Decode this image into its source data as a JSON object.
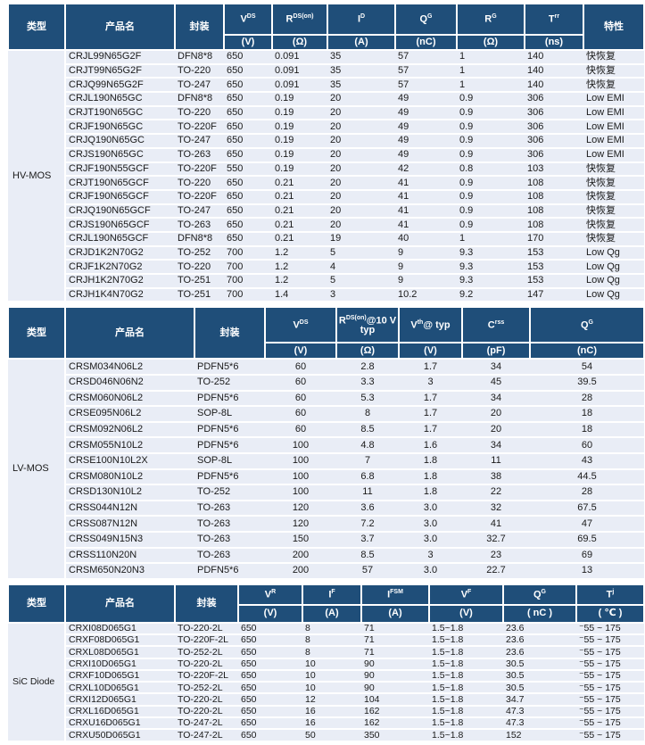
{
  "colors": {
    "header_bg": "#1F4E79",
    "header_text": "#FFFFFF",
    "row_bg": "#E9EDF6",
    "body_text": "#1A1A1A",
    "separator": "#FFFFFF"
  },
  "tables": [
    {
      "id": "hv-mos",
      "type_label": "HV-MOS",
      "headers": [
        {
          "label": "类型",
          "span": true
        },
        {
          "label": "产品名",
          "span": true
        },
        {
          "label": "封装",
          "span": true
        },
        {
          "base": "V",
          "small": "DS",
          "tail": "",
          "unit": "(V)"
        },
        {
          "base": "R",
          "small": "DS(on)",
          "tail": "",
          "unit": "(Ω)"
        },
        {
          "base": "I",
          "small": "D",
          "tail": "",
          "unit": "(A)"
        },
        {
          "base": "Q",
          "small": "G",
          "tail": "",
          "unit": "(nC)"
        },
        {
          "base": "R",
          "small": "G",
          "tail": "",
          "unit": "(Ω)"
        },
        {
          "base": "T",
          "small": "rr",
          "tail": "",
          "unit": "(ns)"
        },
        {
          "label": "特性",
          "span": true
        }
      ],
      "rows": [
        [
          "CRJL99N65G2F",
          "DFN8*8",
          "650",
          "0.091",
          "35",
          "57",
          "1",
          "140",
          "快恢复"
        ],
        [
          "CRJT99N65G2F",
          "TO-220",
          "650",
          "0.091",
          "35",
          "57",
          "1",
          "140",
          "快恢复"
        ],
        [
          "CRJQ99N65G2F",
          "TO-247",
          "650",
          "0.091",
          "35",
          "57",
          "1",
          "140",
          "快恢复"
        ],
        [
          "CRJL190N65GC",
          "DFN8*8",
          "650",
          "0.19",
          "20",
          "49",
          "0.9",
          "306",
          "Low EMI"
        ],
        [
          "CRJT190N65GC",
          "TO-220",
          "650",
          "0.19",
          "20",
          "49",
          "0.9",
          "306",
          "Low EMI"
        ],
        [
          "CRJF190N65GC",
          "TO-220F",
          "650",
          "0.19",
          "20",
          "49",
          "0.9",
          "306",
          "Low EMI"
        ],
        [
          "CRJQ190N65GC",
          "TO-247",
          "650",
          "0.19",
          "20",
          "49",
          "0.9",
          "306",
          "Low EMI"
        ],
        [
          "CRJS190N65GC",
          "TO-263",
          "650",
          "0.19",
          "20",
          "49",
          "0.9",
          "306",
          "Low EMI"
        ],
        [
          "CRJF190N55GCF",
          "TO-220F",
          "550",
          "0.19",
          "20",
          "42",
          "0.8",
          "103",
          "快恢复"
        ],
        [
          "CRJT190N65GCF",
          "TO-220",
          "650",
          "0.21",
          "20",
          "41",
          "0.9",
          "108",
          "快恢复"
        ],
        [
          "CRJF190N65GCF",
          "TO-220F",
          "650",
          "0.21",
          "20",
          "41",
          "0.9",
          "108",
          "快恢复"
        ],
        [
          "CRJQ190N65GCF",
          "TO-247",
          "650",
          "0.21",
          "20",
          "41",
          "0.9",
          "108",
          "快恢复"
        ],
        [
          "CRJS190N65GCF",
          "TO-263",
          "650",
          "0.21",
          "20",
          "41",
          "0.9",
          "108",
          "快恢复"
        ],
        [
          "CRJL190N65GCF",
          "DFN8*8",
          "650",
          "0.21",
          "19",
          "40",
          "1",
          "170",
          "快恢复"
        ],
        [
          "CRJD1K2N70G2",
          "TO-252",
          "700",
          "1.2",
          "5",
          "9",
          "9.3",
          "153",
          "Low Qg"
        ],
        [
          "CRJF1K2N70G2",
          "TO-220",
          "700",
          "1.2",
          "4",
          "9",
          "9.3",
          "153",
          "Low Qg"
        ],
        [
          "CRJH1K2N70G2",
          "TO-251",
          "700",
          "1.2",
          "5",
          "9",
          "9.3",
          "153",
          "Low Qg"
        ],
        [
          "CRJH1K4N70G2",
          "TO-251",
          "700",
          "1.4",
          "3",
          "10.2",
          "9.2",
          "147",
          "Low Qg"
        ]
      ]
    },
    {
      "id": "lv-mos",
      "type_label": "LV-MOS",
      "headers": [
        {
          "label": "类型",
          "span": true
        },
        {
          "label": "产品名",
          "span": true
        },
        {
          "label": "封装",
          "span": true
        },
        {
          "base": "V",
          "small": "DS",
          "tail": "",
          "unit": "(V)"
        },
        {
          "base": "R",
          "small": "DS(on)",
          "tail": "@10 V typ",
          "unit": "(Ω)"
        },
        {
          "base": "V",
          "small": "th",
          "tail": "@ typ",
          "unit": "(V)"
        },
        {
          "base": "C",
          "small": "rss",
          "tail": "",
          "unit": "(pF)"
        },
        {
          "base": "Q",
          "small": "G",
          "tail": "",
          "unit": "(nC)"
        }
      ],
      "rows": [
        [
          "CRSM034N06L2",
          "PDFN5*6",
          "60",
          "2.8",
          "1.7",
          "34",
          "54"
        ],
        [
          "CRSD046N06N2",
          "TO-252",
          "60",
          "3.3",
          "3",
          "45",
          "39.5"
        ],
        [
          "CRSM060N06L2",
          "PDFN5*6",
          "60",
          "5.3",
          "1.7",
          "34",
          "28"
        ],
        [
          "CRSE095N06L2",
          "SOP-8L",
          "60",
          "8",
          "1.7",
          "20",
          "18"
        ],
        [
          "CRSM092N06L2",
          "PDFN5*6",
          "60",
          "8.5",
          "1.7",
          "20",
          "18"
        ],
        [
          "CRSM055N10L2",
          "PDFN5*6",
          "100",
          "4.8",
          "1.6",
          "34",
          "60"
        ],
        [
          "CRSE100N10L2X",
          "SOP-8L",
          "100",
          "7",
          "1.8",
          "11",
          "43"
        ],
        [
          "CRSM080N10L2",
          "PDFN5*6",
          "100",
          "6.8",
          "1.8",
          "38",
          "44.5"
        ],
        [
          "CRSD130N10L2",
          "TO-252",
          "100",
          "11",
          "1.8",
          "22",
          "28"
        ],
        [
          "CRSS044N12N",
          "TO-263",
          "120",
          "3.6",
          "3.0",
          "32",
          "67.5"
        ],
        [
          "CRSS087N12N",
          "TO-263",
          "120",
          "7.2",
          "3.0",
          "41",
          "47"
        ],
        [
          "CRSS049N15N3",
          "TO-263",
          "150",
          "3.7",
          "3.0",
          "32.7",
          "69.5"
        ],
        [
          "CRSS110N20N",
          "TO-263",
          "200",
          "8.5",
          "3",
          "23",
          "69"
        ],
        [
          "CRSM650N20N3",
          "PDFN5*6",
          "200",
          "57",
          "3.0",
          "22.7",
          "13"
        ]
      ]
    },
    {
      "id": "sic-diode",
      "type_label": "SiC Diode",
      "headers": [
        {
          "label": "类型",
          "span": true
        },
        {
          "label": "产品名",
          "span": true
        },
        {
          "label": "封装",
          "span": true
        },
        {
          "base": "V",
          "small": "R",
          "tail": "",
          "unit": "(V)"
        },
        {
          "base": "I",
          "small": "F",
          "tail": "",
          "unit": "(A)"
        },
        {
          "base": "I",
          "small": "FSM",
          "tail": "",
          "unit": "(A)"
        },
        {
          "base": "V",
          "small": "F",
          "tail": "",
          "unit": "(V)"
        },
        {
          "base": "Q",
          "small": "G",
          "tail": "",
          "unit": "( nC )"
        },
        {
          "base": "T",
          "small": "j",
          "tail": "",
          "unit": "( ℃ )"
        }
      ],
      "rows": [
        [
          "CRXI08D065G1",
          "TO-220-2L",
          "650",
          "8",
          "71",
          "1.5~1.8",
          "23.6",
          "⁻55 ~ 175"
        ],
        [
          "CRXF08D065G1",
          "TO-220F-2L",
          "650",
          "8",
          "71",
          "1.5~1.8",
          "23.6",
          "⁻55 ~ 175"
        ],
        [
          "CRXL08D065G1",
          "TO-252-2L",
          "650",
          "8",
          "71",
          "1.5~1.8",
          "23.6",
          "⁻55 ~ 175"
        ],
        [
          "CRXI10D065G1",
          "TO-220-2L",
          "650",
          "10",
          "90",
          "1.5~1.8",
          "30.5",
          "⁻55 ~ 175"
        ],
        [
          "CRXF10D065G1",
          "TO-220F-2L",
          "650",
          "10",
          "90",
          "1.5~1.8",
          "30.5",
          "⁻55 ~ 175"
        ],
        [
          "CRXL10D065G1",
          "TO-252-2L",
          "650",
          "10",
          "90",
          "1.5~1.8",
          "30.5",
          "⁻55 ~ 175"
        ],
        [
          "CRXI12D065G1",
          "TO-220-2L",
          "650",
          "12",
          "104",
          "1.5~1.8",
          "34.7",
          "⁻55 ~ 175"
        ],
        [
          "CRXL16D065G1",
          "TO-220-2L",
          "650",
          "16",
          "162",
          "1.5~1.8",
          "47.3",
          "⁻55 ~ 175"
        ],
        [
          "CRXU16D065G1",
          "TO-247-2L",
          "650",
          "16",
          "162",
          "1.5~1.8",
          "47.3",
          "⁻55 ~ 175"
        ],
        [
          "CRXU50D065G1",
          "TO-247-2L",
          "650",
          "50",
          "350",
          "1.5~1.8",
          "152",
          "⁻55 ~ 175"
        ]
      ]
    }
  ]
}
